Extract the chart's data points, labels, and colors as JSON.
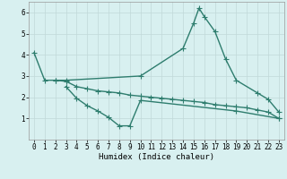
{
  "xlabel": "Humidex (Indice chaleur)",
  "bg_color": "#d8f0f0",
  "grid_color": "#c0d8d8",
  "line_color": "#2e7d6e",
  "line1_x": [
    0,
    1,
    2,
    3,
    10,
    14,
    15,
    15.5,
    16,
    17,
    18,
    19,
    21,
    22,
    23
  ],
  "line1_y": [
    4.1,
    2.8,
    2.8,
    2.8,
    3.0,
    4.3,
    5.5,
    6.2,
    5.8,
    5.1,
    3.8,
    2.8,
    2.2,
    1.9,
    1.3
  ],
  "line2_x": [
    3,
    4,
    5,
    6,
    7,
    8,
    9,
    10,
    19,
    23
  ],
  "line2_y": [
    2.5,
    1.95,
    1.6,
    1.35,
    1.05,
    0.65,
    0.65,
    1.85,
    1.35,
    1.0
  ],
  "line3_x": [
    2,
    3,
    4,
    5,
    6,
    7,
    8,
    9,
    10,
    11,
    12,
    13,
    14,
    15,
    16,
    17,
    18,
    19,
    20,
    21,
    22,
    23
  ],
  "line3_y": [
    2.8,
    2.75,
    2.5,
    2.4,
    2.3,
    2.25,
    2.2,
    2.1,
    2.05,
    2.0,
    1.95,
    1.9,
    1.85,
    1.8,
    1.75,
    1.65,
    1.6,
    1.55,
    1.5,
    1.4,
    1.3,
    1.0
  ],
  "xlim": [
    -0.5,
    23.5
  ],
  "ylim": [
    0,
    6.5
  ],
  "yticks": [
    1,
    2,
    3,
    4,
    5,
    6
  ],
  "xticks": [
    0,
    1,
    2,
    3,
    4,
    5,
    6,
    7,
    8,
    9,
    10,
    11,
    12,
    13,
    14,
    15,
    16,
    17,
    18,
    19,
    20,
    21,
    22,
    23
  ],
  "marker": "+",
  "markersize": 4,
  "linewidth": 1.0
}
